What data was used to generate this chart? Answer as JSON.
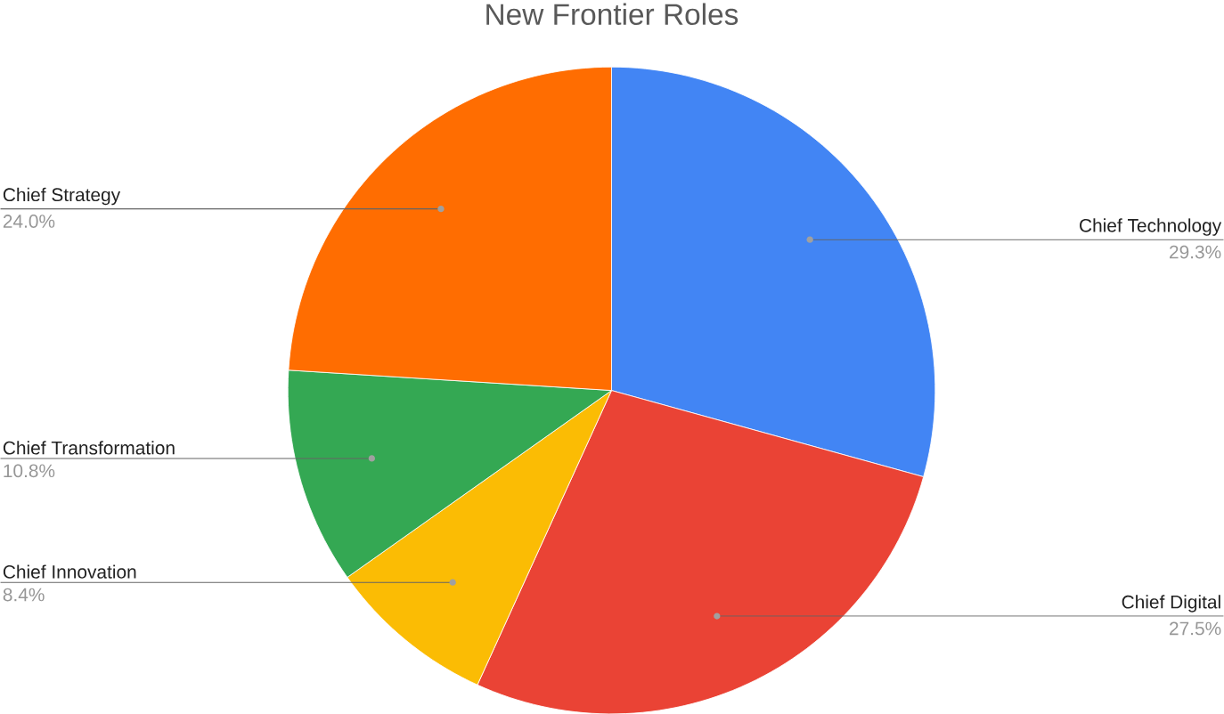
{
  "chart_data": {
    "type": "pie",
    "title": "New Frontier Roles",
    "categories": [
      "Chief Technology",
      "Chief Digital",
      "Chief Innovation",
      "Chief Transformation",
      "Chief Strategy"
    ],
    "values": [
      29.3,
      27.5,
      8.4,
      10.8,
      24.0
    ],
    "colors": [
      "#4285f4",
      "#ea4335",
      "#fbbc04",
      "#34a853",
      "#ff6d01"
    ],
    "value_labels": [
      "29.3%",
      "27.5%",
      "8.4%",
      "10.8%",
      "24.0%"
    ]
  }
}
